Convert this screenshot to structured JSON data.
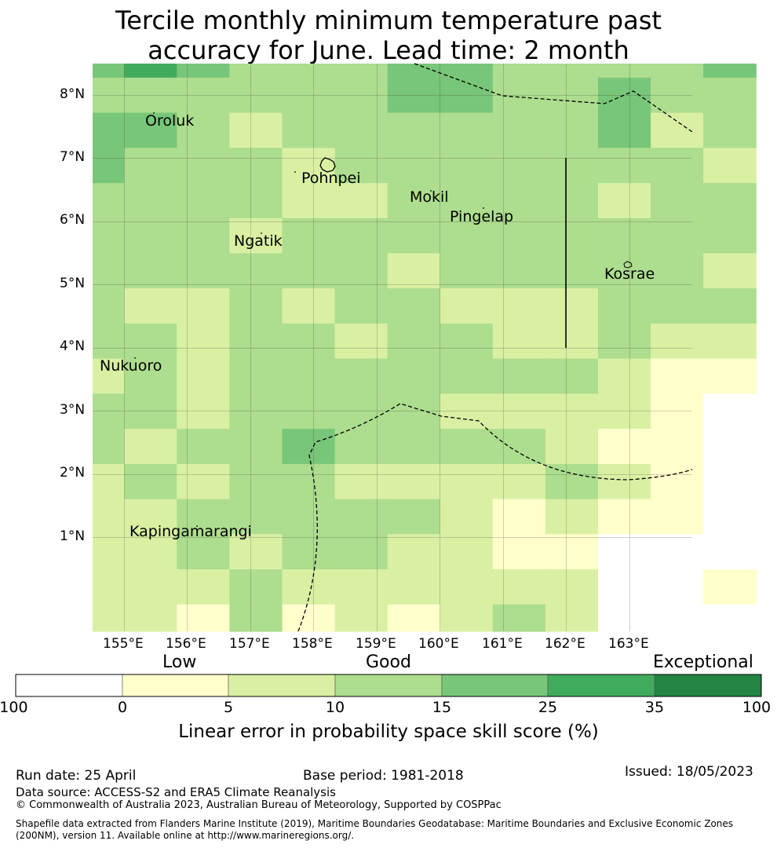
{
  "title_line1": "Tercile monthly minimum temperature past",
  "title_line2": "accuracy for June. Lead time: 2 month",
  "map": {
    "lat_ticks": [
      "8°N",
      "7°N",
      "6°N",
      "5°N",
      "4°N",
      "3°N",
      "2°N",
      "1°N"
    ],
    "lon_ticks": [
      "155°E",
      "156°E",
      "157°E",
      "158°E",
      "159°E",
      "160°E",
      "161°E",
      "162°E",
      "163°E"
    ],
    "places": [
      {
        "name": "Oroluk"
      },
      {
        "name": "Pohnpei"
      },
      {
        "name": "Mokil"
      },
      {
        "name": "Pingelap"
      },
      {
        "name": "Ngatik"
      },
      {
        "name": "Kosrae"
      },
      {
        "name": "Nukuoro"
      },
      {
        "name": "Kapingamarangi"
      }
    ],
    "grid_classes": [
      [
        4,
        5,
        4,
        3,
        3,
        3,
        4,
        4,
        3,
        3,
        3,
        3,
        4,
        2
      ],
      [
        3,
        3,
        3,
        3,
        3,
        3,
        4,
        4,
        3,
        3,
        4,
        3,
        3,
        2
      ],
      [
        4,
        4,
        3,
        2,
        3,
        3,
        3,
        3,
        3,
        3,
        4,
        2,
        3,
        3
      ],
      [
        4,
        3,
        3,
        3,
        2,
        3,
        3,
        3,
        3,
        3,
        3,
        3,
        2,
        3
      ],
      [
        3,
        3,
        3,
        3,
        2,
        2,
        3,
        3,
        3,
        3,
        2,
        3,
        3,
        2
      ],
      [
        3,
        3,
        3,
        2,
        3,
        3,
        3,
        3,
        3,
        3,
        3,
        3,
        3,
        3
      ],
      [
        3,
        3,
        3,
        3,
        3,
        3,
        2,
        3,
        3,
        3,
        3,
        3,
        2,
        2
      ],
      [
        3,
        2,
        2,
        3,
        2,
        3,
        3,
        2,
        2,
        2,
        3,
        3,
        3,
        2
      ],
      [
        3,
        3,
        2,
        3,
        3,
        2,
        3,
        3,
        2,
        2,
        3,
        2,
        2,
        1
      ],
      [
        2,
        3,
        2,
        3,
        3,
        3,
        3,
        3,
        3,
        3,
        2,
        1,
        1,
        3
      ],
      [
        3,
        3,
        2,
        3,
        3,
        3,
        3,
        2,
        2,
        2,
        2,
        1,
        0,
        1
      ],
      [
        3,
        2,
        3,
        3,
        4,
        3,
        3,
        3,
        3,
        2,
        1,
        1,
        0,
        1
      ],
      [
        2,
        3,
        2,
        3,
        3,
        2,
        2,
        2,
        2,
        3,
        2,
        1,
        0,
        -1
      ],
      [
        2,
        2,
        3,
        3,
        3,
        3,
        3,
        2,
        1,
        2,
        1,
        1,
        0,
        1
      ],
      [
        2,
        2,
        3,
        2,
        3,
        3,
        2,
        2,
        1,
        1,
        0,
        0,
        0,
        0
      ],
      [
        2,
        2,
        2,
        3,
        2,
        2,
        2,
        2,
        2,
        2,
        0,
        0,
        1,
        2
      ],
      [
        2,
        2,
        1,
        3,
        1,
        2,
        1,
        2,
        3,
        2,
        0,
        0,
        0,
        2
      ]
    ]
  },
  "colorbar": {
    "categories": [
      "Low",
      "Good",
      "Exceptional"
    ],
    "ticks": [
      "-100",
      "0",
      "5",
      "10",
      "15",
      "25",
      "35",
      "100"
    ],
    "colors": [
      "#ffffff",
      "#ffffcc",
      "#d9f0a3",
      "#addd8e",
      "#78c679",
      "#41ab5d",
      "#238443"
    ],
    "label": "Linear error in probability space skill score (%)"
  },
  "footer": {
    "run_date": "Run date: 25 April",
    "base_period": "Base period: 1981-2018",
    "issued": "Issued: 18/05/2023",
    "data_source": "Data source: ACCESS-S2 and ERA5 Climate Reanalysis",
    "copyright": "© Commonwealth of Australia 2023, Australian Bureau of Meteorology, Supported by COSPPac",
    "shapefile1": "Shapefile data extracted from Flanders Marine Institute (2019), Maritime Boundaries Geodatabase: Maritime Boundaries and Exclusive Economic Zones",
    "shapefile2": "(200NM), version 11. Available online at http://www.marineregions.org/."
  }
}
